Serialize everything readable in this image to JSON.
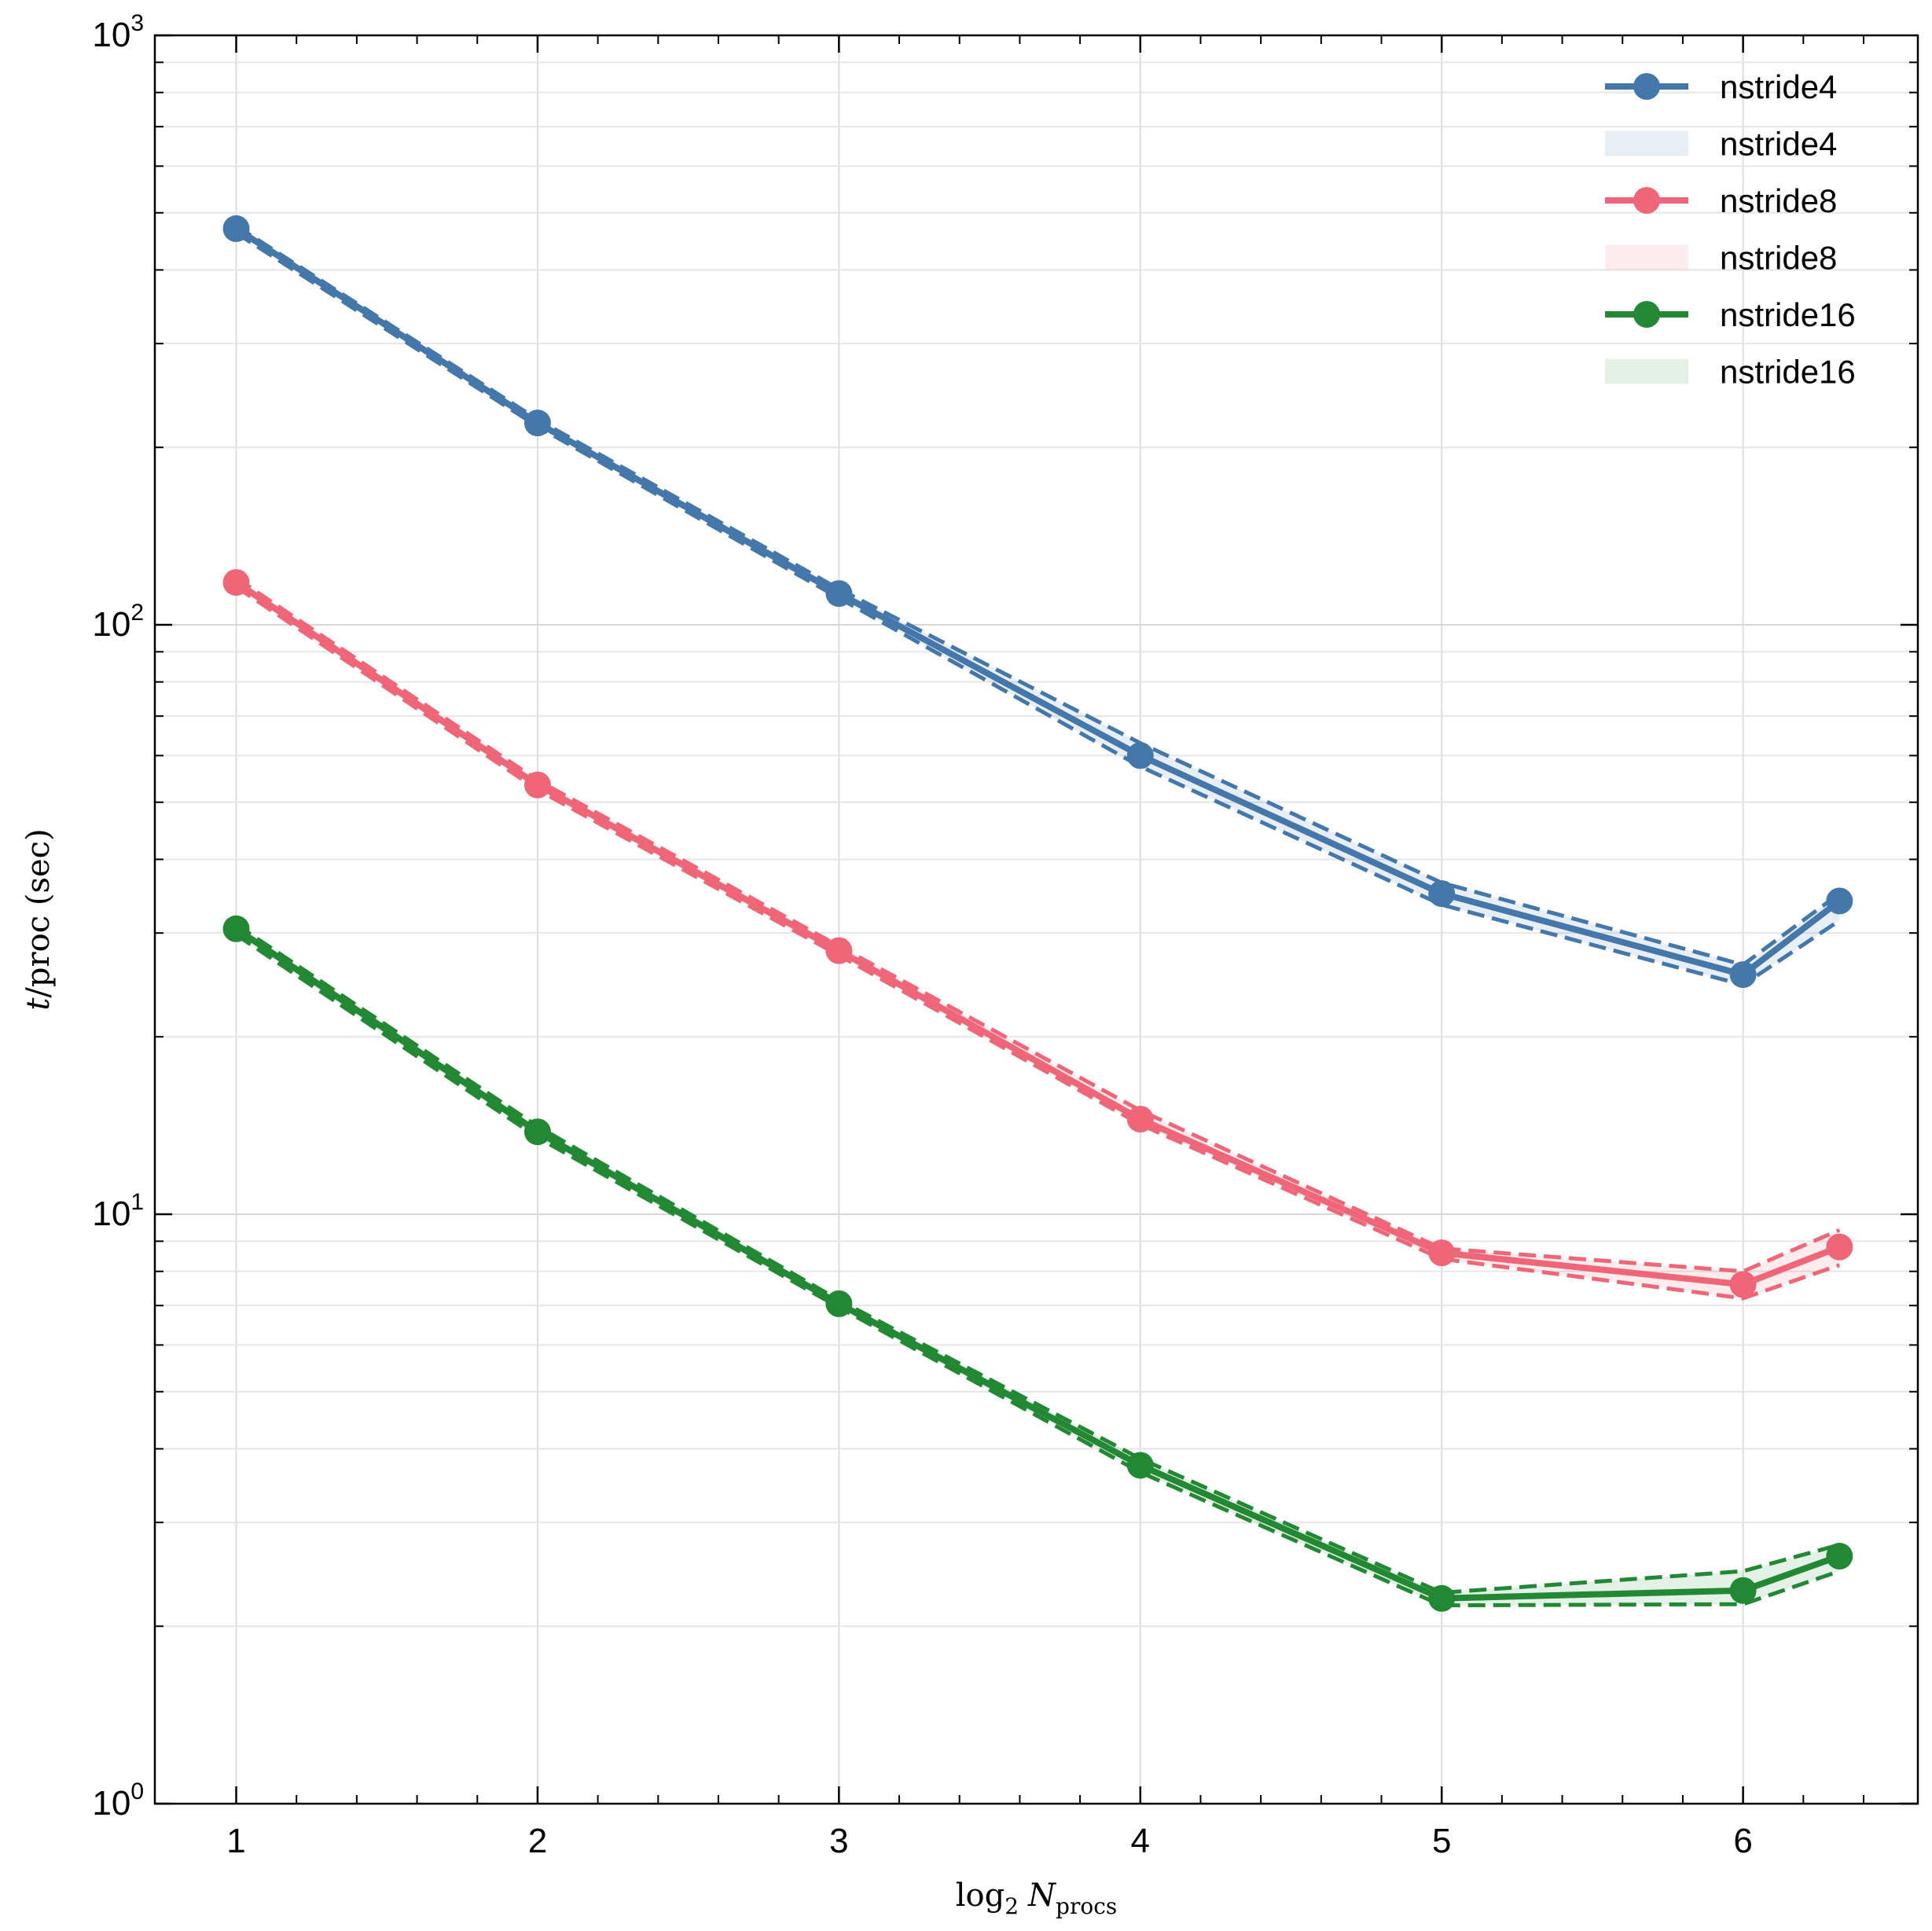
{
  "chart_data": {
    "type": "line",
    "x_label": {
      "main": "log",
      "sub": "2",
      "var": "N",
      "var_sub": "procs"
    },
    "y_label": {
      "var": "t",
      "rest": "/proc (sec)"
    },
    "y_scale": "log",
    "ylim": [
      1,
      1000
    ],
    "xlim": [
      0.73,
      6.58
    ],
    "x_ticks": [
      1,
      2,
      3,
      4,
      5,
      6
    ],
    "y_major_ticks": [
      {
        "value": 1,
        "base": "10",
        "exp": "0"
      },
      {
        "value": 10,
        "base": "10",
        "exp": "1"
      },
      {
        "value": 100,
        "base": "10",
        "exp": "2"
      },
      {
        "value": 1000,
        "base": "10",
        "exp": "3"
      }
    ],
    "grid": true,
    "legend_position": "top-right",
    "x": [
      1,
      2,
      3,
      4,
      5,
      6,
      6.32
    ],
    "series": [
      {
        "name": "nstride4",
        "band_name": "nstride4",
        "color": "#4477aa",
        "values": [
          470,
          220,
          113,
          60,
          35,
          25.5,
          34
        ],
        "upper": [
          475,
          223,
          115,
          63,
          36.5,
          26.5,
          35
        ],
        "lower": [
          462,
          217,
          111,
          57.5,
          33.5,
          24.5,
          31.5
        ]
      },
      {
        "name": "nstride8",
        "band_name": "nstride8",
        "color": "#ee6677",
        "values": [
          118,
          53.5,
          28,
          14.5,
          8.6,
          7.6,
          8.8
        ],
        "upper": [
          120,
          54.5,
          28.5,
          15,
          8.75,
          8.0,
          9.4
        ],
        "lower": [
          116,
          52.5,
          27.5,
          14.2,
          8.4,
          7.2,
          8.2
        ]
      },
      {
        "name": "nstride16",
        "band_name": "nstride16",
        "color": "#228833",
        "values": [
          30.5,
          13.8,
          7.05,
          3.75,
          2.23,
          2.3,
          2.63
        ],
        "upper": [
          31,
          14.1,
          7.15,
          3.85,
          2.28,
          2.48,
          2.75
        ],
        "lower": [
          29.8,
          13.5,
          6.95,
          3.65,
          2.17,
          2.18,
          2.48
        ]
      }
    ]
  }
}
